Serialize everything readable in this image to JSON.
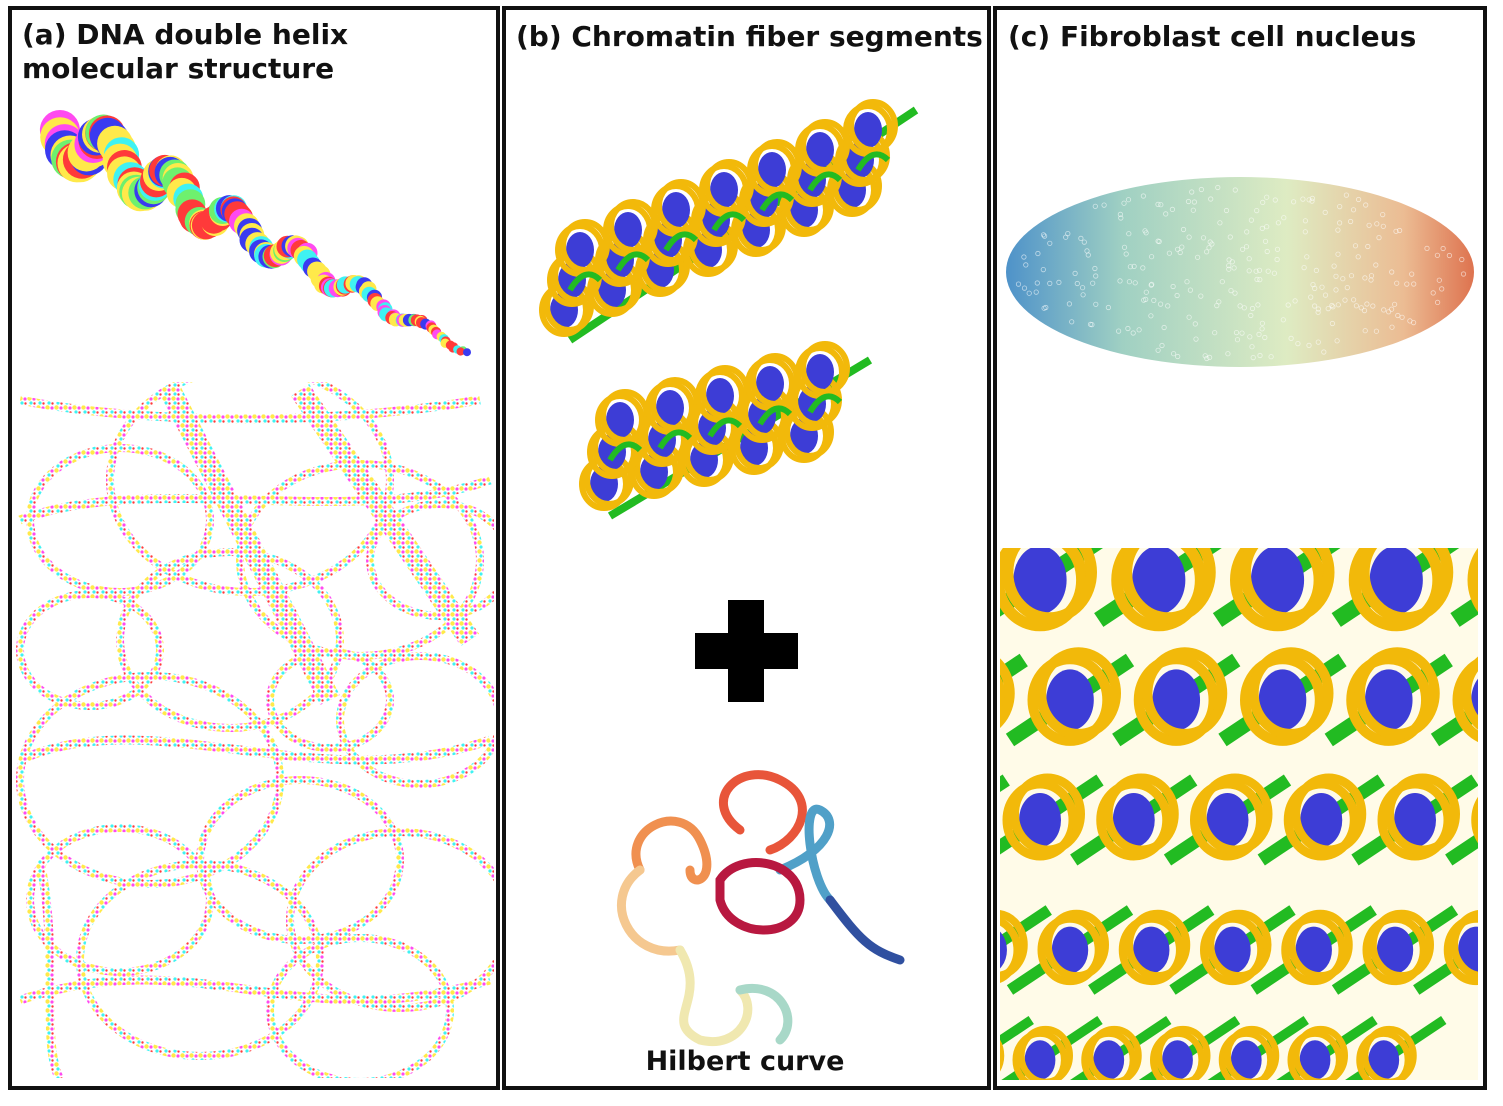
{
  "panels": [
    {
      "id": "a",
      "title_line1": "(a) DNA double helix",
      "title_line2": "molecular structure"
    },
    {
      "id": "b",
      "title": "(b) Chromatin fiber segments",
      "plus_symbol": "+",
      "hilbert_caption": "Hilbert curve"
    },
    {
      "id": "c",
      "title": "(c) Fibroblast cell nucleus"
    }
  ],
  "colors": {
    "frame": "#111111",
    "dna_red": "#ff3a3a",
    "dna_yellow": "#ffe94a",
    "dna_magenta": "#ff4af0",
    "dna_cyan": "#3ff2f2",
    "dna_green": "#6ef06e",
    "dna_blue": "#3a3af0",
    "histone_gold": "#f2b90a",
    "histone_blue": "#3d3dd6",
    "linker_green": "#22bb22",
    "nucleus_teal": "#7fbfb0",
    "nucleus_orange": "#e0703a"
  }
}
